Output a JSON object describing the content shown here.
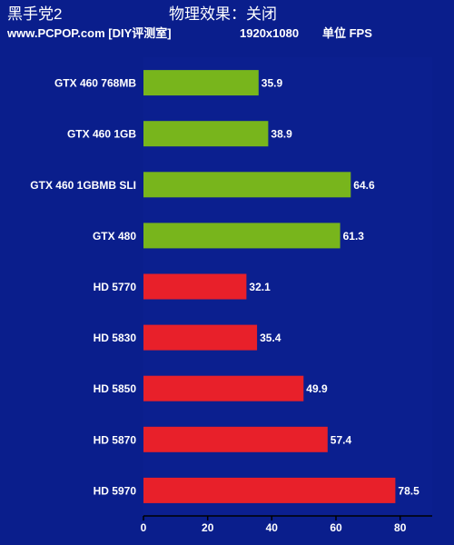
{
  "header": {
    "game": "黑手党2",
    "physics": "物理效果：关闭",
    "site": "www.PCPOP.com [DIY评测室]",
    "resolution": "1920x1080",
    "unit": "单位 FPS"
  },
  "colors": {
    "header_bg": "#0a1e8c",
    "header_text": "#ffffff",
    "plot_bg": "#0b1f8f",
    "nvidia_bar": "#78b51c",
    "amd_bar": "#e8202a",
    "label_text": "#ffffff"
  },
  "chart_data": {
    "type": "bar",
    "orientation": "horizontal",
    "categories": [
      "GTX 460 768MB",
      "GTX 460 1GB",
      "GTX 460 1GBMB SLI",
      "GTX 480",
      "HD 5770",
      "HD 5830",
      "HD 5850",
      "HD 5870",
      "HD 5970"
    ],
    "values": [
      35.9,
      38.9,
      64.6,
      61.3,
      32.1,
      35.4,
      49.9,
      57.4,
      78.5
    ],
    "value_labels": [
      "35.9",
      "38.9",
      "64.6",
      "61.3",
      "32.1",
      "35.4",
      "49.9",
      "57.4",
      "78.5"
    ],
    "bar_groups": [
      "nvidia",
      "nvidia",
      "nvidia",
      "nvidia",
      "amd",
      "amd",
      "amd",
      "amd",
      "amd"
    ],
    "xlim": [
      0,
      90
    ],
    "xticks": [
      0,
      20,
      40,
      60,
      80
    ],
    "grid": false,
    "legend": "none"
  }
}
